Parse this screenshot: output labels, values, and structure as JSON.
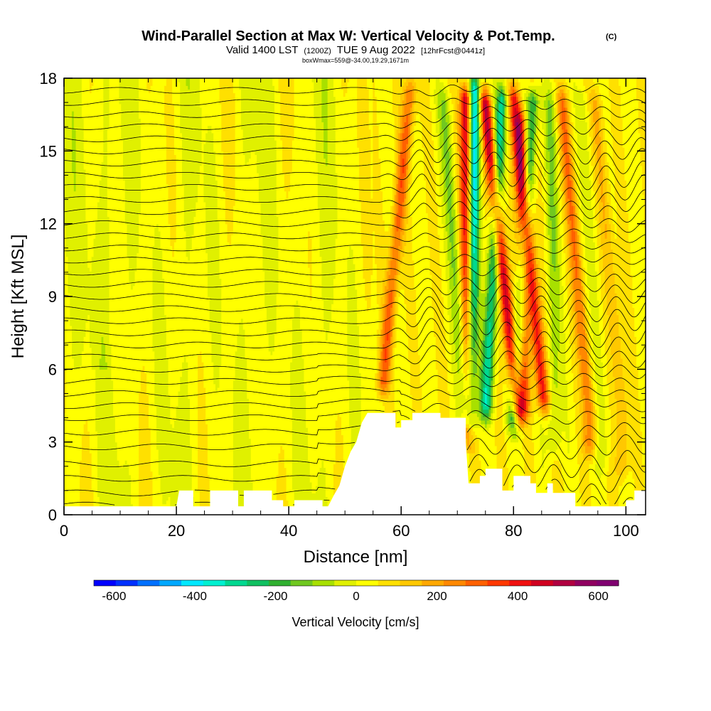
{
  "header": {
    "title": "Wind-Parallel Section at Max W: Vertical Velocity & Pot.Temp.",
    "title_mark": "(C)",
    "valid_prefix": "Valid 1400 LST",
    "valid_utc": "(1200Z)",
    "valid_date": "TUE 9 Aug 2022",
    "forecast": "[12hrFcst@0441z]",
    "box_info": "boxWmax=559@-34.00,19.29,1671m"
  },
  "chart_data": {
    "type": "heatmap",
    "title": "Wind-Parallel Section at Max W: Vertical Velocity & Pot.Temp.",
    "xlabel": "Distance [nm]",
    "ylabel": "Height [Kft MSL]",
    "xlim": [
      0,
      103.5
    ],
    "ylim": [
      0,
      18
    ],
    "xticks": [
      0,
      20,
      40,
      60,
      80,
      100
    ],
    "yticks": [
      0,
      3,
      6,
      9,
      12,
      15,
      18
    ],
    "colorbar": {
      "label": "Vertical Velocity [cm/s]",
      "ticks": [
        -600,
        -400,
        -200,
        0,
        200,
        400,
        600
      ],
      "range": [
        -650,
        650
      ],
      "colors": [
        "#0000ff",
        "#0030ff",
        "#0070ff",
        "#00a8ff",
        "#00e8ff",
        "#00f0d0",
        "#00d890",
        "#10c060",
        "#30b030",
        "#70c820",
        "#a8e000",
        "#e0f000",
        "#ffff00",
        "#ffe000",
        "#ffc800",
        "#ffa800",
        "#ff8800",
        "#ff6000",
        "#ff3800",
        "#f01010",
        "#d00020",
        "#b00040",
        "#900060",
        "#800070"
      ]
    },
    "terrain_kft": [
      [
        0,
        0.35
      ],
      [
        20,
        0.35
      ],
      [
        20.5,
        1.0
      ],
      [
        23,
        1.0
      ],
      [
        23,
        0.35
      ],
      [
        26,
        0.35
      ],
      [
        26,
        1.0
      ],
      [
        31,
        1.0
      ],
      [
        31,
        0.35
      ],
      [
        32,
        0.35
      ],
      [
        32,
        1.0
      ],
      [
        37,
        1.0
      ],
      [
        37,
        0.6
      ],
      [
        39,
        0.6
      ],
      [
        39,
        0.35
      ],
      [
        41,
        0.35
      ],
      [
        41,
        0.6
      ],
      [
        46,
        0.6
      ],
      [
        46,
        0.35
      ],
      [
        47,
        0.35
      ],
      [
        48,
        0.8
      ],
      [
        49,
        1.2
      ],
      [
        50,
        2
      ],
      [
        51,
        2.6
      ],
      [
        52,
        3.0
      ],
      [
        53,
        3.8
      ],
      [
        54,
        4.2
      ],
      [
        59,
        4.2
      ],
      [
        59,
        3.6
      ],
      [
        60,
        3.6
      ],
      [
        60,
        3.9
      ],
      [
        62,
        3.9
      ],
      [
        62,
        4.2
      ],
      [
        67,
        4.2
      ],
      [
        67,
        4.0
      ],
      [
        71.5,
        4.0
      ],
      [
        71.5,
        3.0
      ],
      [
        72,
        1.3
      ],
      [
        74,
        1.3
      ],
      [
        74,
        1.6
      ],
      [
        75,
        1.6
      ],
      [
        75,
        1.9
      ],
      [
        78,
        1.9
      ],
      [
        78,
        1.0
      ],
      [
        80,
        1.0
      ],
      [
        80,
        1.6
      ],
      [
        83,
        1.6
      ],
      [
        83,
        1.3
      ],
      [
        84,
        1.3
      ],
      [
        84,
        0.9
      ],
      [
        86,
        0.9
      ],
      [
        86,
        1.3
      ],
      [
        87,
        1.3
      ],
      [
        87,
        0.9
      ],
      [
        91,
        0.9
      ],
      [
        91,
        0.35
      ],
      [
        100,
        0.35
      ],
      [
        100,
        0.6
      ],
      [
        101.5,
        0.6
      ],
      [
        101.5,
        1.0
      ],
      [
        103.5,
        1.0
      ]
    ],
    "updraft_bands": [
      {
        "x_top": 61.6,
        "x_bot": 56.2,
        "amp": 250,
        "y0": 5.5,
        "y1": 17.5
      },
      {
        "x_top": 71.6,
        "x_bot": 72.0,
        "amp": 560,
        "y0": 3.5,
        "y1": 17.2
      },
      {
        "x_top": 74.7,
        "x_bot": 80.9,
        "amp": 470,
        "y0": 4.3,
        "y1": 17.0
      },
      {
        "x_top": 80.0,
        "x_bot": 85.6,
        "amp": 380,
        "y0": 4.8,
        "y1": 17.2
      },
      {
        "x_top": 81.4,
        "x_bot": 82.0,
        "amp": 250,
        "y0": 4.6,
        "y1": 16.2
      },
      {
        "x_top": 88.5,
        "x_bot": 93.6,
        "amp": 220,
        "y0": 3.0,
        "y1": 17.0
      },
      {
        "x_top": 94.5,
        "x_bot": 99.3,
        "amp": 150,
        "y0": 2.0,
        "y1": 17.0
      }
    ],
    "downdraft_bands": [
      {
        "x_top": 67.5,
        "x_bot": 71.5,
        "amp": -150,
        "y0": 4.5,
        "y1": 17.0
      },
      {
        "x_top": 73.0,
        "x_bot": 72.2,
        "amp": -580,
        "y0": 3.7,
        "y1": 17.5
      },
      {
        "x_top": 78.0,
        "x_bot": 75.0,
        "amp": -340,
        "y0": 4.5,
        "y1": 17.2
      },
      {
        "x_top": 83.5,
        "x_bot": 80.0,
        "amp": -300,
        "y0": 4.0,
        "y1": 17.0
      },
      {
        "x_top": 86.6,
        "x_bot": 87.3,
        "amp": -130,
        "y0": 3.0,
        "y1": 17.0
      },
      {
        "x_top": 92.3,
        "x_bot": 96.0,
        "amp": -80,
        "y0": 2.5,
        "y1": 17.0
      }
    ],
    "isentropes_kft": [
      0.4,
      0.9,
      1.5,
      2.1,
      2.8,
      3.4,
      4.0,
      4.5,
      5.0,
      5.5,
      6.0,
      6.5,
      7.0,
      7.5,
      8.0,
      8.5,
      9.0,
      9.5,
      10.0,
      10.5,
      11.0,
      11.5,
      12.0,
      12.5,
      13.0,
      13.5,
      14.0,
      14.5,
      15.0,
      15.5,
      16.0,
      16.5,
      17.0,
      17.5
    ]
  }
}
